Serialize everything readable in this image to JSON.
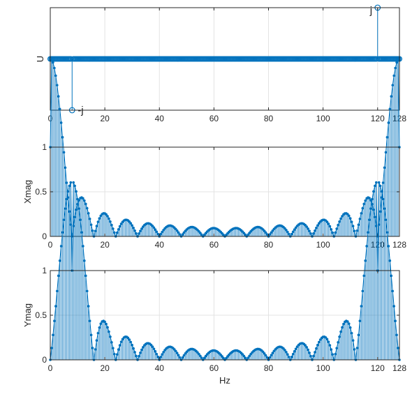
{
  "colors": {
    "series": "#0072BD",
    "grid": "#e3e3e3",
    "axis": "#262626",
    "background": "#ffffff"
  },
  "chart_data": [
    {
      "type": "stem",
      "xlabel": "",
      "ylabel": "U",
      "xlim": [
        0,
        128
      ],
      "ylim": [
        -1,
        1
      ],
      "xticks": [
        0,
        20,
        40,
        60,
        80,
        100,
        120,
        128
      ],
      "yticks": [],
      "grid": true,
      "x_step": 0.5,
      "baseline_value": 0,
      "points": [
        {
          "x": 8,
          "y": -1,
          "label": "-j"
        },
        {
          "x": 120,
          "y": 1,
          "label": "j"
        }
      ]
    },
    {
      "type": "stem",
      "xlabel": "",
      "ylabel": "Xmag",
      "xlim": [
        0,
        128
      ],
      "ylim": [
        0,
        1
      ],
      "xticks": [
        0,
        20,
        40,
        60,
        80,
        100,
        120,
        128
      ],
      "yticks": [
        0,
        0.5,
        1
      ],
      "ytick_labels": [
        "0",
        "0.5",
        "1"
      ],
      "grid": true,
      "x_step": 0.5,
      "peak_centers": [
        0,
        128
      ]
    },
    {
      "type": "stem",
      "xlabel": "Hz",
      "ylabel": "Ymag",
      "xlim": [
        0,
        128
      ],
      "ylim": [
        0,
        1
      ],
      "xticks": [
        0,
        20,
        40,
        60,
        80,
        100,
        120,
        128
      ],
      "yticks": [
        0,
        0.5,
        1
      ],
      "ytick_labels": [
        "0",
        "0.5",
        "1"
      ],
      "grid": true,
      "x_step": 0.5,
      "peak_centers": [
        8,
        120
      ]
    }
  ]
}
